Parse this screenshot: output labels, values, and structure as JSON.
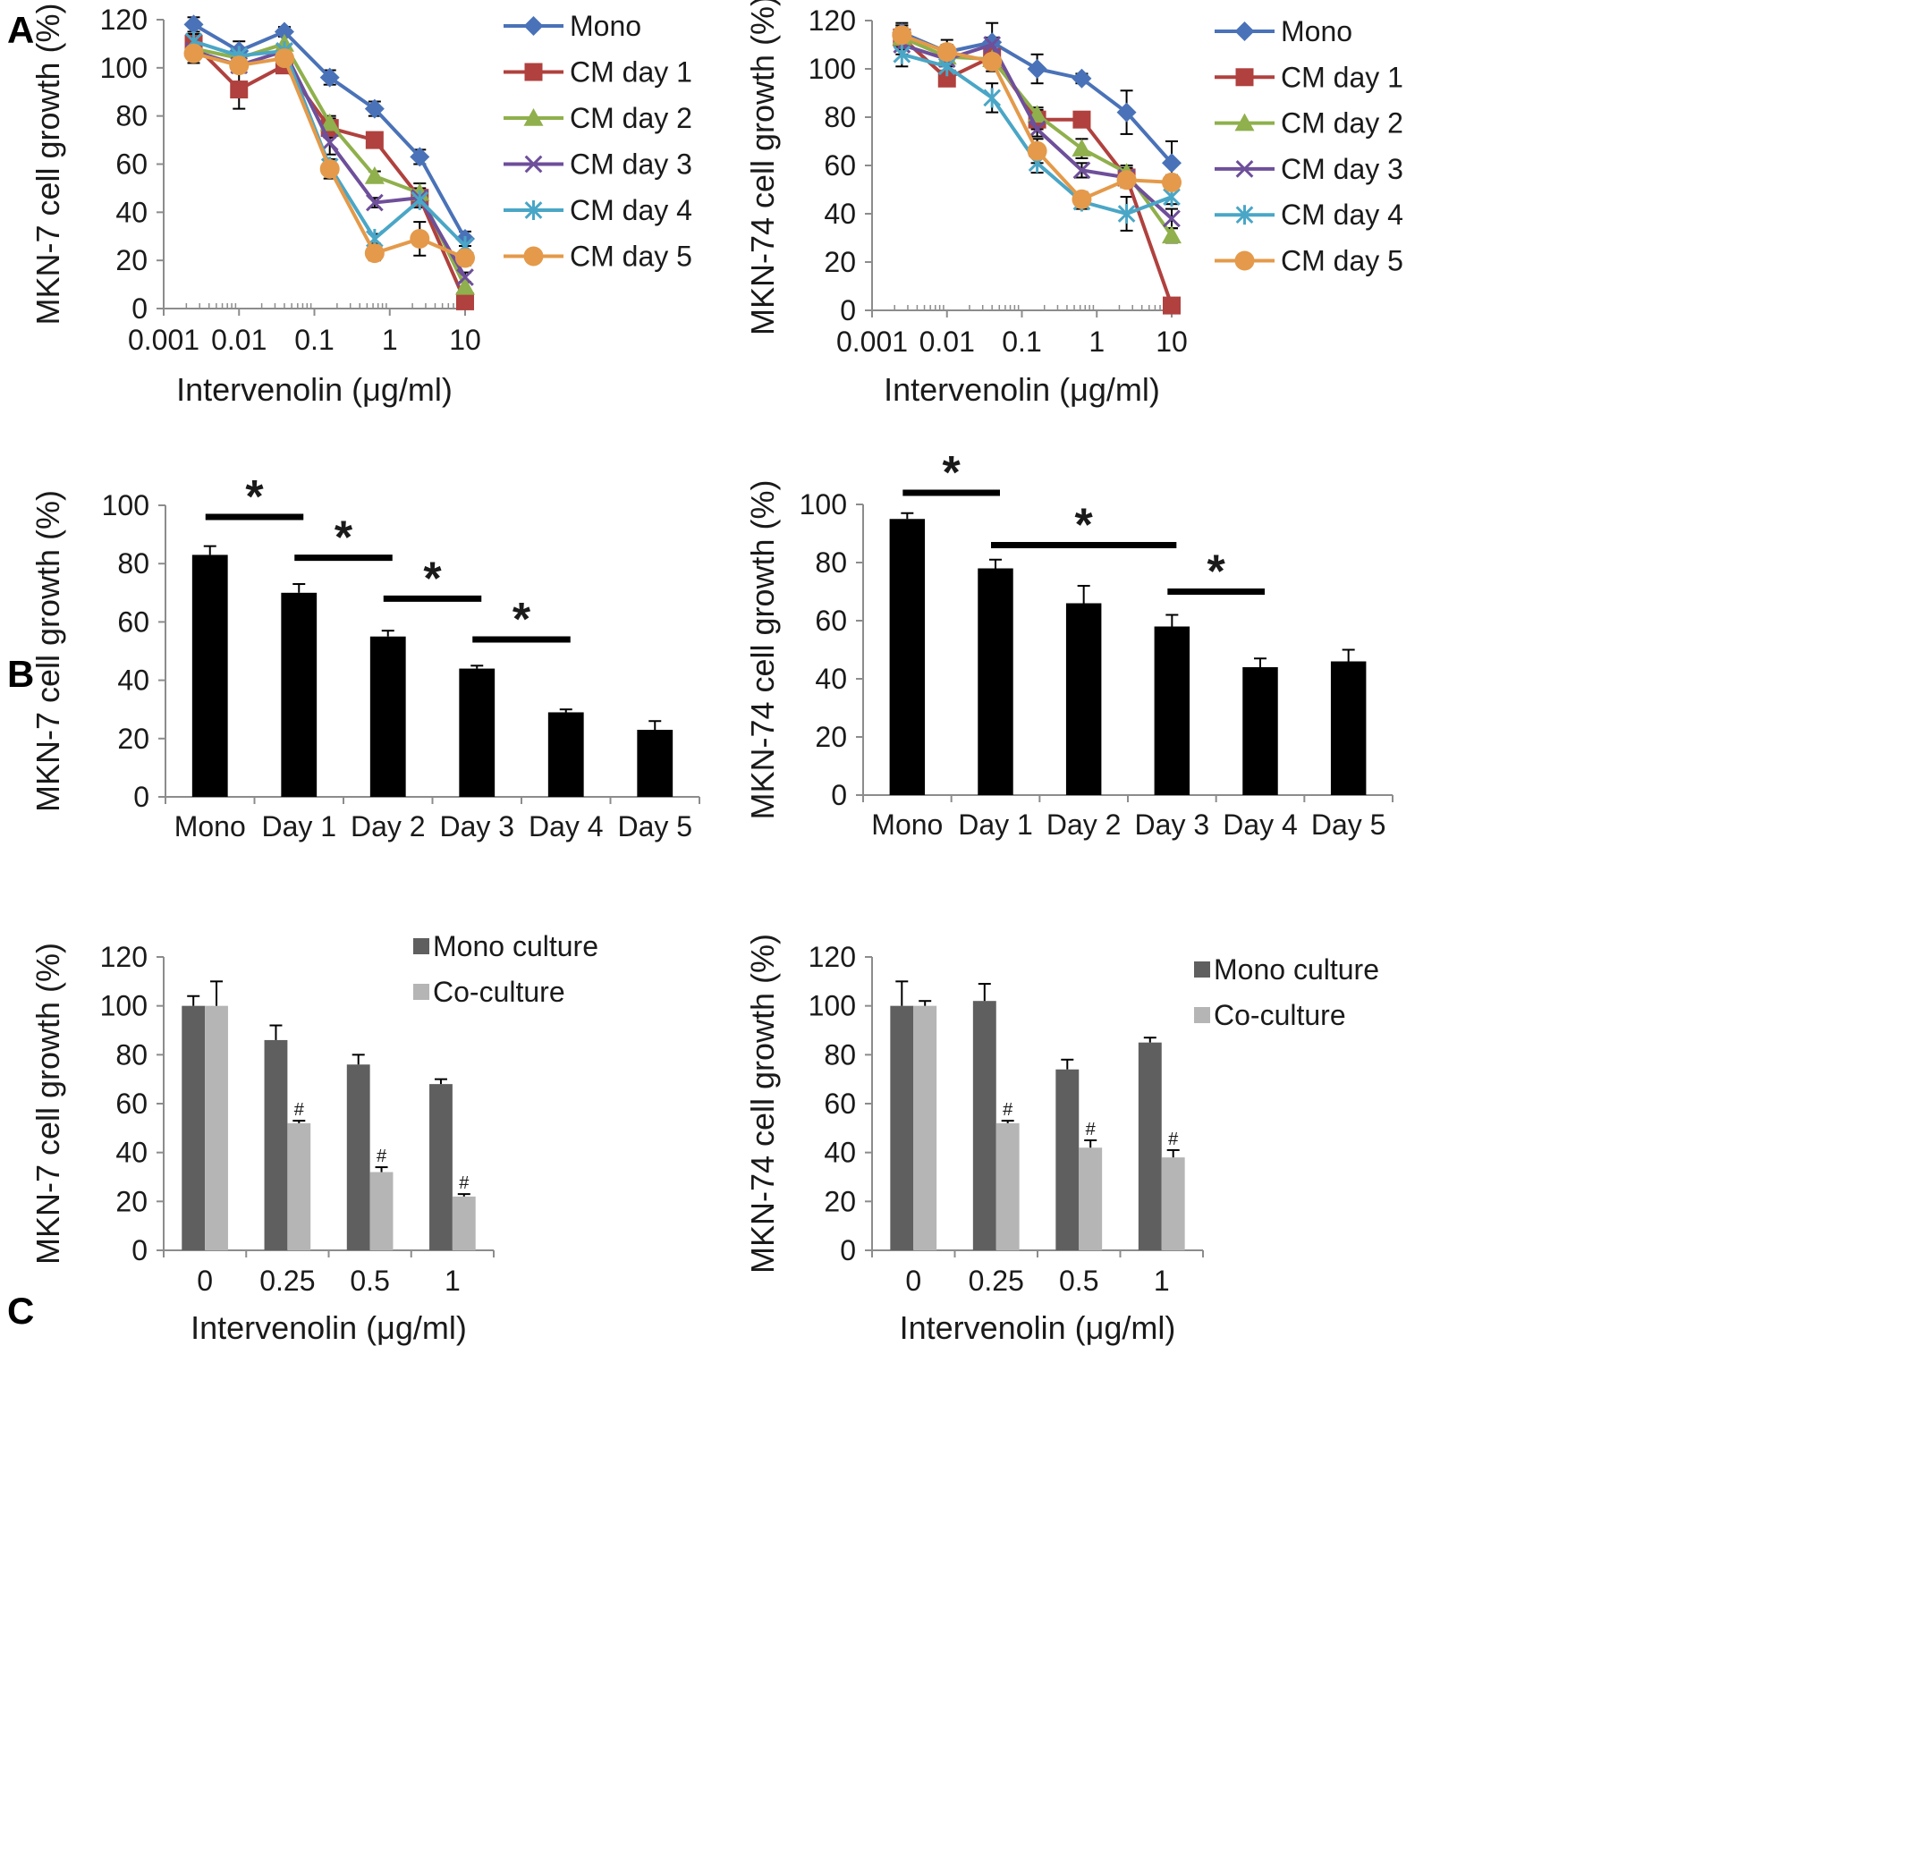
{
  "panels": [
    {
      "letter": "A"
    },
    {
      "letter": "B"
    },
    {
      "letter": "C"
    }
  ],
  "chart_data": [
    {
      "id": "A-left",
      "type": "line",
      "panel": "A",
      "xscale": "log",
      "ylabel": "MKN-7 cell growth (%)",
      "xlabel": "Intervenolin (μg/ml)",
      "xlim": [
        0.001,
        10
      ],
      "ylim": [
        0,
        120
      ],
      "xticks": [
        0.001,
        0.01,
        0.1,
        1,
        10
      ],
      "xtick_labels": [
        "0.001",
        "0.01",
        "0.1",
        "1",
        "10"
      ],
      "yticks": [
        0,
        20,
        40,
        60,
        80,
        100,
        120
      ],
      "x": [
        0.0025,
        0.01,
        0.04,
        0.16,
        0.63,
        2.5,
        10
      ],
      "series": [
        {
          "name": "Mono",
          "color": "#4a72b8",
          "marker": "diamond",
          "values": [
            118,
            107,
            115,
            96,
            83,
            63,
            29
          ],
          "errors": [
            3,
            4,
            2,
            3,
            3,
            3,
            3
          ]
        },
        {
          "name": "CM day 1",
          "color": "#b0413e",
          "marker": "square",
          "values": [
            110,
            91,
            101,
            75,
            70,
            46,
            3
          ],
          "errors": [
            4,
            8,
            3,
            4,
            3,
            4,
            1
          ]
        },
        {
          "name": "CM day 2",
          "color": "#8fb04c",
          "marker": "triangle",
          "values": [
            108,
            104,
            110,
            77,
            55,
            48,
            9
          ],
          "errors": [
            4,
            3,
            3,
            3,
            2,
            4,
            2
          ]
        },
        {
          "name": "CM day 3",
          "color": "#6e4f9a",
          "marker": "x",
          "values": [
            107,
            101,
            107,
            69,
            44,
            46,
            13
          ],
          "errors": [
            3,
            3,
            2,
            5,
            2,
            3,
            2
          ]
        },
        {
          "name": "CM day 4",
          "color": "#4aa6c6",
          "marker": "star",
          "values": [
            111,
            105,
            107,
            59,
            29,
            45,
            26
          ],
          "errors": [
            3,
            3,
            2,
            3,
            2,
            3,
            2
          ]
        },
        {
          "name": "CM day 5",
          "color": "#e49a4a",
          "marker": "circle",
          "values": [
            106,
            101,
            104,
            58,
            23,
            29,
            21
          ],
          "errors": [
            4,
            3,
            3,
            4,
            3,
            7,
            3
          ]
        }
      ]
    },
    {
      "id": "A-right",
      "type": "line",
      "panel": "A",
      "xscale": "log",
      "ylabel": "MKN-74 cell growth (%)",
      "xlabel": "Intervenolin (μg/ml)",
      "xlim": [
        0.001,
        10
      ],
      "ylim": [
        0,
        120
      ],
      "xticks": [
        0.001,
        0.01,
        0.1,
        1,
        10
      ],
      "xtick_labels": [
        "0.001",
        "0.01",
        "0.1",
        "1",
        "10"
      ],
      "yticks": [
        0,
        20,
        40,
        60,
        80,
        100,
        120
      ],
      "x": [
        0.0025,
        0.01,
        0.04,
        0.16,
        0.63,
        2.5,
        10
      ],
      "series": [
        {
          "name": "Mono",
          "color": "#4a72b8",
          "marker": "diamond",
          "values": [
            115,
            107,
            111,
            100,
            96,
            82,
            61
          ],
          "errors": [
            4,
            5,
            8,
            6,
            2,
            9,
            9
          ]
        },
        {
          "name": "CM day 1",
          "color": "#b0413e",
          "marker": "square",
          "values": [
            113,
            96,
            105,
            79,
            79,
            55,
            2
          ],
          "errors": [
            5,
            3,
            3,
            4,
            3,
            4,
            1
          ]
        },
        {
          "name": "CM day 2",
          "color": "#8fb04c",
          "marker": "triangle",
          "values": [
            113,
            105,
            104,
            81,
            67,
            57,
            31
          ],
          "errors": [
            4,
            3,
            3,
            3,
            4,
            3,
            3
          ]
        },
        {
          "name": "CM day 3",
          "color": "#6e4f9a",
          "marker": "x",
          "values": [
            110,
            104,
            110,
            75,
            58,
            55,
            38
          ],
          "errors": [
            4,
            3,
            3,
            3,
            3,
            3,
            4
          ]
        },
        {
          "name": "CM day 4",
          "color": "#4aa6c6",
          "marker": "star",
          "values": [
            106,
            101,
            88,
            61,
            45,
            40,
            47
          ],
          "errors": [
            5,
            5,
            6,
            4,
            3,
            7,
            3
          ]
        },
        {
          "name": "CM day 5",
          "color": "#e49a4a",
          "marker": "circle",
          "values": [
            114,
            107,
            103,
            66,
            46,
            54,
            53
          ],
          "errors": [
            4,
            3,
            4,
            5,
            3,
            3,
            3
          ]
        }
      ]
    },
    {
      "id": "B-left",
      "type": "bar",
      "panel": "B",
      "ylabel": "MKN-7 cell growth (%)",
      "categories": [
        "Mono",
        "Day 1",
        "Day 2",
        "Day 3",
        "Day 4",
        "Day 5"
      ],
      "ylim": [
        0,
        100
      ],
      "yticks": [
        0,
        20,
        40,
        60,
        80,
        100
      ],
      "series": [
        {
          "name": "growth",
          "color": "#000000",
          "values": [
            83,
            70,
            55,
            44,
            29,
            23
          ],
          "errors": [
            3,
            3,
            2,
            1,
            1,
            3
          ]
        }
      ],
      "annotations": [
        {
          "text": "*",
          "from": 0,
          "to": 1,
          "y": 96
        },
        {
          "text": "*",
          "from": 1,
          "to": 2,
          "y": 82
        },
        {
          "text": "*",
          "from": 2,
          "to": 3,
          "y": 68
        },
        {
          "text": "*",
          "from": 3,
          "to": 4,
          "y": 54
        }
      ]
    },
    {
      "id": "B-right",
      "type": "bar",
      "panel": "B",
      "ylabel": "MKN-74 cell growth (%)",
      "categories": [
        "Mono",
        "Day 1",
        "Day 2",
        "Day 3",
        "Day 4",
        "Day 5"
      ],
      "ylim": [
        0,
        100
      ],
      "yticks": [
        0,
        20,
        40,
        60,
        80,
        100
      ],
      "series": [
        {
          "name": "growth",
          "color": "#000000",
          "values": [
            95,
            78,
            66,
            58,
            44,
            46
          ],
          "errors": [
            2,
            3,
            6,
            4,
            3,
            4
          ]
        }
      ],
      "annotations": [
        {
          "text": "*",
          "from": 0,
          "to": 1,
          "y": 104
        },
        {
          "text": "*",
          "from": 1,
          "to": 3,
          "y": 86
        },
        {
          "text": "*",
          "from": 3,
          "to": 4,
          "y": 70
        }
      ]
    },
    {
      "id": "C-left",
      "type": "bar",
      "panel": "C",
      "ylabel": "MKN-7 cell growth (%)",
      "xlabel": "Intervenolin (μg/ml)",
      "categories": [
        "0",
        "0.25",
        "0.5",
        "1"
      ],
      "ylim": [
        0,
        120
      ],
      "yticks": [
        0,
        20,
        40,
        60,
        80,
        100,
        120
      ],
      "series": [
        {
          "name": "Mono culture",
          "color": "#5f5f5f",
          "values": [
            100,
            86,
            76,
            68
          ],
          "errors": [
            4,
            6,
            4,
            2
          ]
        },
        {
          "name": "Co-culture",
          "color": "#b5b5b5",
          "values": [
            100,
            52,
            32,
            22
          ],
          "errors": [
            10,
            1,
            2,
            1
          ],
          "marks": [
            "",
            "#",
            "#",
            "#"
          ]
        }
      ]
    },
    {
      "id": "C-right",
      "type": "bar",
      "panel": "C",
      "ylabel": "MKN-74 cell growth (%)",
      "xlabel": "Intervenolin (μg/ml)",
      "categories": [
        "0",
        "0.25",
        "0.5",
        "1"
      ],
      "ylim": [
        0,
        120
      ],
      "yticks": [
        0,
        20,
        40,
        60,
        80,
        100,
        120
      ],
      "series": [
        {
          "name": "Mono culture",
          "color": "#5f5f5f",
          "values": [
            100,
            102,
            74,
            85
          ],
          "errors": [
            10,
            7,
            4,
            2
          ]
        },
        {
          "name": "Co-culture",
          "color": "#b5b5b5",
          "values": [
            100,
            52,
            42,
            38
          ],
          "errors": [
            2,
            1,
            3,
            3
          ],
          "marks": [
            "",
            "#",
            "#",
            "#"
          ]
        }
      ]
    }
  ]
}
